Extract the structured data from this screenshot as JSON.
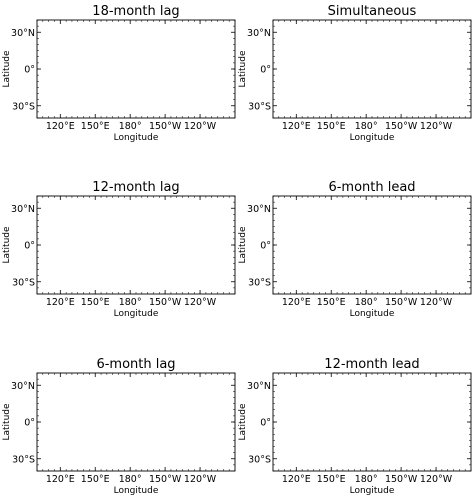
{
  "figure": {
    "panels": [
      {
        "id": "p1",
        "title": "18-month lag"
      },
      {
        "id": "p2",
        "title": "Simultaneous"
      },
      {
        "id": "p3",
        "title": "12-month lag"
      },
      {
        "id": "p4",
        "title": "6-month lead"
      },
      {
        "id": "p5",
        "title": "6-month lag"
      },
      {
        "id": "p6",
        "title": "12-month lead"
      }
    ],
    "axes": {
      "xlabel": "Longitude",
      "ylabel": "Latitude",
      "lon_range_deg_east": [
        100,
        270
      ],
      "lat_range_deg": [
        -40,
        40
      ],
      "x_ticks": [
        {
          "lon": 120,
          "label": "120°E"
        },
        {
          "lon": 150,
          "label": "150°E"
        },
        {
          "lon": 180,
          "label": "180°"
        },
        {
          "lon": 210,
          "label": "150°W"
        },
        {
          "lon": 240,
          "label": "120°W"
        }
      ],
      "y_ticks": [
        {
          "lat": 30,
          "label": "30°N"
        },
        {
          "lat": 0,
          "label": "0°"
        },
        {
          "lat": -30,
          "label": "30°S"
        }
      ]
    },
    "colors": {
      "land": "#d3d3d3",
      "ocean": "#ffffff",
      "coastline": "#000000"
    }
  }
}
